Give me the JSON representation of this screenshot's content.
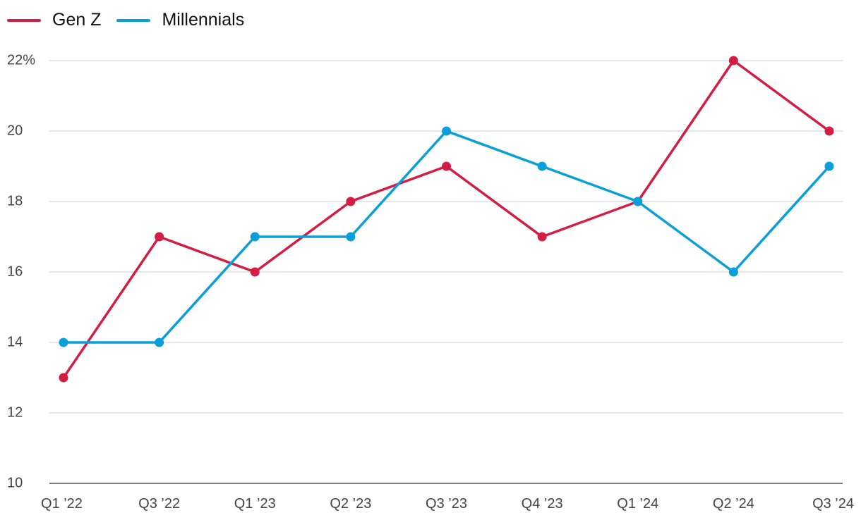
{
  "chart_data": {
    "type": "line",
    "title": "",
    "xlabel": "",
    "ylabel": "",
    "categories": [
      "Q1 ’22",
      "Q3 ’22",
      "Q1 ’23",
      "Q2 ’23",
      "Q3 ’23",
      "Q4 ’23",
      "Q1 ’24",
      "Q2 ’24",
      "Q3 ’24"
    ],
    "series": [
      {
        "name": "Gen Z",
        "color": "#d21e44",
        "values": [
          13,
          17,
          16,
          18,
          19,
          17,
          18,
          22,
          20
        ]
      },
      {
        "name": "Millennials",
        "color": "#0a9fd8",
        "values": [
          14,
          14,
          17,
          17,
          20,
          19,
          18,
          16,
          19
        ]
      }
    ],
    "ylim": [
      10,
      22
    ],
    "yticks": [
      10,
      12,
      14,
      16,
      18,
      20,
      22
    ],
    "ytick_labels": [
      "10",
      "12",
      "14",
      "16",
      "18",
      "20",
      "22%"
    ],
    "grid": true,
    "legend_position": "top-left"
  }
}
